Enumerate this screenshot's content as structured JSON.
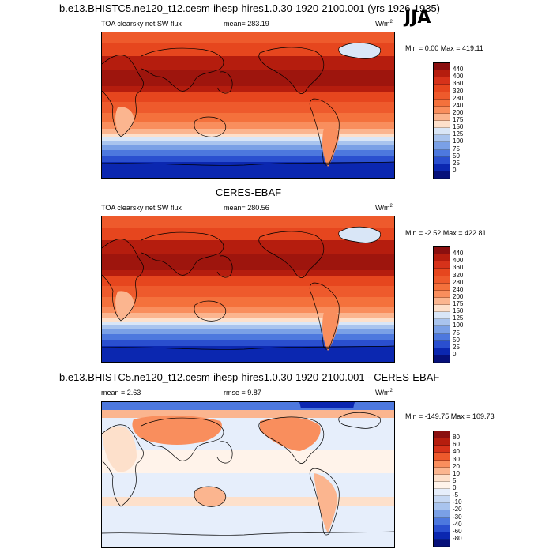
{
  "header": {
    "run_title": "b.e13.BHISTC5.ne120_t12.cesm-ihesp-hires1.0.30-1920-2100.001 (yrs 1926-1935)",
    "season": "JJA"
  },
  "panel1": {
    "var_label": "TOA clearsky net SW flux",
    "mean_text": "mean= 283.19",
    "units_text": "W/m",
    "units_sup": "2",
    "minmax_text": "Min =   0.00 Max = 419.11",
    "levels": [
      "440",
      "400",
      "360",
      "320",
      "280",
      "240",
      "200",
      "175",
      "150",
      "125",
      "100",
      "75",
      "50",
      "25",
      "0"
    ]
  },
  "panel2": {
    "dataset_title": "CERES-EBAF",
    "var_label": "TOA clearsky net SW flux",
    "mean_text": "mean= 280.56",
    "units_text": "W/m",
    "units_sup": "2",
    "minmax_text": "Min =  -2.52 Max = 422.81",
    "levels": [
      "440",
      "400",
      "360",
      "320",
      "280",
      "240",
      "200",
      "175",
      "150",
      "125",
      "100",
      "75",
      "50",
      "25",
      "0"
    ]
  },
  "panel3": {
    "diff_title": "b.e13.BHISTC5.ne120_t12.cesm-ihesp-hires1.0.30-1920-2100.001 - CERES-EBAF",
    "mean_text": "mean =   2.63",
    "rmse_text": "rmse =   9.87",
    "units_text": "W/m",
    "units_sup": "2",
    "minmax_text": "Min = -149.75 Max = 109.73",
    "levels": [
      "80",
      "60",
      "40",
      "30",
      "20",
      "10",
      "5",
      "0",
      "-5",
      "-10",
      "-20",
      "-30",
      "-40",
      "-60",
      "-80"
    ]
  },
  "colors": {
    "abs_scale": [
      "#8a0f0f",
      "#b51d0e",
      "#d6321a",
      "#e6461e",
      "#ee5a2c",
      "#f4713c",
      "#f98e5d",
      "#fbb58f",
      "#fde0cb",
      "#d9e6f7",
      "#a9c4ee",
      "#7aa0e6",
      "#4d78de",
      "#2a4fcf",
      "#0b27b0",
      "#06107a"
    ],
    "diff_scale": [
      "#8a0f0f",
      "#b51d0e",
      "#d6321a",
      "#ee5a2c",
      "#f98e5d",
      "#fbb58f",
      "#fde0cb",
      "#fff3ea",
      "#e6eefb",
      "#c6d8f3",
      "#a9c4ee",
      "#7aa0e6",
      "#4d78de",
      "#2a4fcf",
      "#0b27b0",
      "#06107a"
    ]
  }
}
